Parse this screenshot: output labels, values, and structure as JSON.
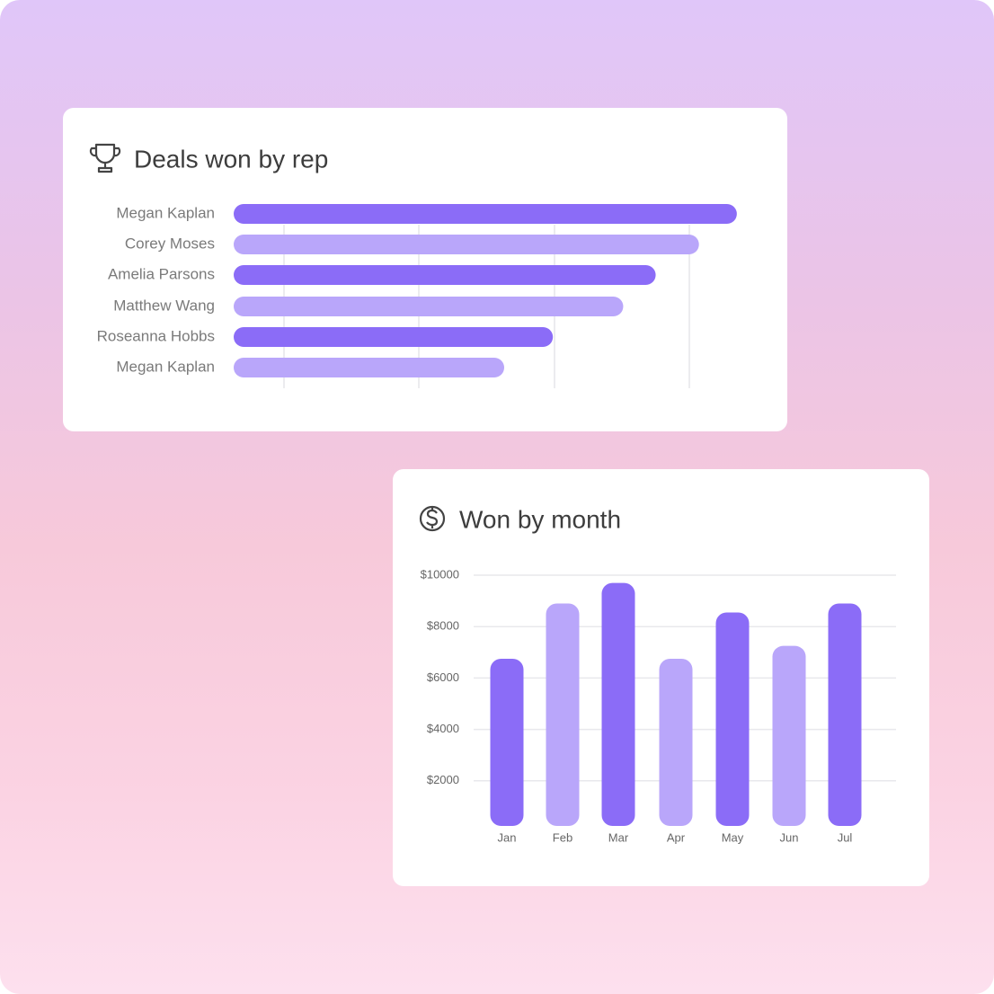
{
  "chart_data": [
    {
      "type": "barh",
      "title": "Deals won by rep",
      "categories": [
        "Megan Kaplan",
        "Corey Moses",
        "Amelia Parsons",
        "Matthew Wang",
        "Roseanna Hobbs",
        "Megan Kaplan"
      ],
      "values": [
        93,
        86,
        78,
        72,
        59,
        50
      ],
      "colors": [
        "#8b6cf7",
        "#b9a6fa",
        "#8b6cf7",
        "#b9a6fa",
        "#8b6cf7",
        "#b9a6fa"
      ],
      "xlim": [
        0,
        100
      ]
    },
    {
      "type": "bar",
      "title": "Won by month",
      "categories": [
        "Jan",
        "Feb",
        "Mar",
        "Apr",
        "May",
        "Jun",
        "Jul"
      ],
      "values": [
        6750,
        8900,
        9700,
        6750,
        8550,
        7250,
        8900
      ],
      "colors": [
        "#8b6cf7",
        "#b9a6fa",
        "#8b6cf7",
        "#b9a6fa",
        "#8b6cf7",
        "#b9a6fa",
        "#8b6cf7"
      ],
      "ylim": [
        0,
        10000
      ],
      "yticks": [
        {
          "value": 2000,
          "label": "$2000"
        },
        {
          "value": 4000,
          "label": "$4000"
        },
        {
          "value": 6000,
          "label": "$6000"
        },
        {
          "value": 8000,
          "label": "$8000"
        },
        {
          "value": 10000,
          "label": "$10000"
        }
      ],
      "grid": true
    }
  ]
}
